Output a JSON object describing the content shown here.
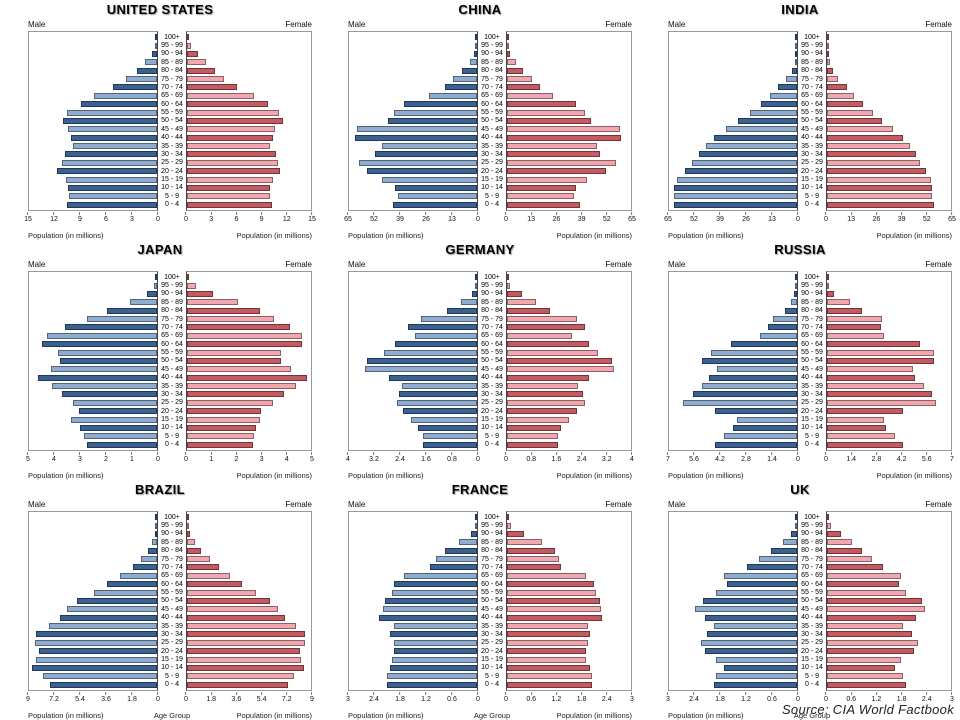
{
  "source_note": "Source: CIA World Factbook",
  "labels": {
    "male": "Male",
    "female": "Female",
    "population": "Population (in millions)",
    "age_group": "Age Group"
  },
  "colors": {
    "male_dark": "#3A6191",
    "male_light": "#8FADD1",
    "female_dark": "#C45B63",
    "female_light": "#F2A7AE",
    "box_border": "#999999",
    "axis_line": "#444444"
  },
  "age_groups": [
    "100+",
    "95 - 99",
    "90 - 94",
    "85 - 89",
    "80 - 84",
    "75 - 79",
    "70 - 74",
    "65 - 69",
    "60 - 64",
    "55 - 59",
    "50 - 54",
    "45 - 49",
    "40 - 44",
    "35 - 39",
    "30 - 34",
    "25 - 29",
    "20 - 24",
    "15 - 19",
    "10 - 14",
    "5 - 9",
    "0 - 4"
  ],
  "chart_data": {
    "type": "bar",
    "subtype": "population-pyramid-grid",
    "categories_note": "rows top-to-bottom use age_groups; values in millions",
    "charts": [
      {
        "title": "UNITED STATES",
        "xlim": [
          0,
          15
        ],
        "ticks_male": [
          "15",
          "12",
          "9",
          "6",
          "3",
          "0"
        ],
        "ticks_female": [
          "0",
          "3",
          "6",
          "9",
          "12",
          "15"
        ],
        "xlabel_left": "Population (in millions)",
        "xlabel_center": "",
        "xlabel_right": "Population (in millions)",
        "series": [
          {
            "name": "Male",
            "values": [
              0.06,
              0.2,
              0.55,
              1.35,
              2.4,
              3.6,
              5.2,
              7.4,
              8.9,
              10.5,
              11.0,
              10.4,
              10.1,
              9.9,
              10.8,
              11.1,
              11.7,
              10.7,
              10.4,
              10.3,
              10.6
            ]
          },
          {
            "name": "Female",
            "values": [
              0.12,
              0.45,
              1.3,
              2.3,
              3.4,
              4.5,
              6.1,
              8.1,
              9.8,
              11.1,
              11.6,
              10.7,
              10.4,
              10.0,
              10.8,
              11.0,
              11.3,
              10.4,
              10.0,
              10.0,
              10.3
            ]
          }
        ]
      },
      {
        "title": "CHINA",
        "xlim": [
          0,
          65
        ],
        "ticks_male": [
          "65",
          "52",
          "39",
          "26",
          "13",
          "0"
        ],
        "ticks_female": [
          "0",
          "13",
          "26",
          "39",
          "52",
          "65"
        ],
        "xlabel_left": "Population (in millions)",
        "xlabel_center": "",
        "xlabel_right": "Population (in millions)",
        "series": [
          {
            "name": "Male",
            "values": [
              0.05,
              0.3,
              1.5,
              3.8,
              7.5,
              12,
              16.5,
              24.5,
              37,
              42,
              45,
              61,
              62,
              48,
              52,
              60,
              56,
              48,
              41.5,
              40,
              42.5
            ]
          },
          {
            "name": "Female",
            "values": [
              0.08,
              0.5,
              1.8,
              4.5,
              8.5,
              13,
              17.5,
              24,
              36,
              41,
              44,
              59,
              60,
              47,
              49,
              57,
              52,
              42,
              36,
              35,
              38.5
            ]
          }
        ]
      },
      {
        "title": "INDIA",
        "xlim": [
          0,
          65
        ],
        "ticks_male": [
          "65",
          "52",
          "39",
          "26",
          "13",
          "0"
        ],
        "ticks_female": [
          "0",
          "13",
          "26",
          "39",
          "52",
          "65"
        ],
        "xlabel_left": "Population (in millions)",
        "xlabel_center": "",
        "xlabel_right": "Population (in millions)",
        "series": [
          {
            "name": "Male",
            "values": [
              0.03,
              0.1,
              0.4,
              1.2,
              2.8,
              5.5,
              9.5,
              13.5,
              18.5,
              24,
              30,
              36,
              42,
              46,
              50,
              53.5,
              57,
              61,
              62.5,
              62.5,
              62.5
            ]
          },
          {
            "name": "Female",
            "values": [
              0.05,
              0.15,
              0.6,
              1.5,
              3.2,
              6,
              10.5,
              14,
              19,
              24,
              29,
              34.5,
              40,
              43.5,
              46.5,
              49,
              52,
              54.5,
              55,
              55,
              56
            ]
          }
        ]
      },
      {
        "title": "JAPAN",
        "xlim": [
          0,
          5
        ],
        "ticks_male": [
          "5",
          "4",
          "3",
          "2",
          "1",
          "0"
        ],
        "ticks_female": [
          "0",
          "1",
          "2",
          "3",
          "4",
          "5"
        ],
        "xlabel_left": "Population (in millions)",
        "xlabel_center": "",
        "xlabel_right": "Population (in millions)",
        "series": [
          {
            "name": "Male",
            "values": [
              0.03,
              0.12,
              0.4,
              1.05,
              1.95,
              2.75,
              3.6,
              4.3,
              4.5,
              3.85,
              3.8,
              4.15,
              4.65,
              4.1,
              3.7,
              3.3,
              3.05,
              3.35,
              3.0,
              2.85,
              2.75
            ]
          },
          {
            "name": "Female",
            "values": [
              0.1,
              0.35,
              1.05,
              2.05,
              2.95,
              3.5,
              4.15,
              4.65,
              4.65,
              3.8,
              3.8,
              4.2,
              4.85,
              4.4,
              3.9,
              3.45,
              3.0,
              2.95,
              2.8,
              2.7,
              2.65
            ]
          }
        ]
      },
      {
        "title": "GERMANY",
        "xlim": [
          0,
          4
        ],
        "ticks_male": [
          "4",
          "3.2",
          "2.4",
          "1.6",
          "0.8",
          "0"
        ],
        "ticks_female": [
          "0",
          "0.8",
          "1.6",
          "2.4",
          "3.2",
          "4"
        ],
        "xlabel_left": "Population (in millions)",
        "xlabel_center": "",
        "xlabel_right": "Population (in millions)",
        "series": [
          {
            "name": "Male",
            "values": [
              0.01,
              0.05,
              0.17,
              0.5,
              0.95,
              1.75,
              2.15,
              1.95,
              2.55,
              2.9,
              3.45,
              3.5,
              2.75,
              2.35,
              2.45,
              2.5,
              2.3,
              2.05,
              1.85,
              1.7,
              1.7
            ]
          },
          {
            "name": "Female",
            "values": [
              0.04,
              0.1,
              0.48,
              0.95,
              1.4,
              2.25,
              2.5,
              2.1,
              2.65,
              2.95,
              3.4,
              3.45,
              2.65,
              2.3,
              2.45,
              2.5,
              2.25,
              2.0,
              1.75,
              1.65,
              1.65
            ]
          }
        ]
      },
      {
        "title": "RUSSIA",
        "xlim": [
          0,
          7
        ],
        "ticks_male": [
          "7",
          "5.6",
          "4.2",
          "2.8",
          "1.4",
          "0"
        ],
        "ticks_female": [
          "0",
          "1.4",
          "2.8",
          "4.2",
          "5.6",
          "7"
        ],
        "xlabel_left": "Population (in millions)",
        "xlabel_center": "",
        "xlabel_right": "Population (in millions)",
        "series": [
          {
            "name": "Male",
            "values": [
              0.01,
              0.05,
              0.15,
              0.35,
              0.65,
              1.3,
              1.6,
              2.0,
              3.6,
              4.7,
              5.2,
              4.4,
              4.8,
              5.2,
              5.7,
              6.25,
              4.5,
              3.3,
              3.5,
              4.0,
              4.5
            ]
          },
          {
            "name": "Female",
            "values": [
              0.03,
              0.1,
              0.4,
              1.3,
              2.0,
              3.1,
              3.05,
              3.2,
              5.25,
              6.05,
              6.05,
              4.85,
              4.95,
              5.45,
              5.9,
              6.15,
              4.3,
              3.2,
              3.35,
              3.85,
              4.3
            ]
          }
        ]
      },
      {
        "title": "BRAZIL",
        "xlim": [
          0,
          9
        ],
        "ticks_male": [
          "9",
          "7.2",
          "5.4",
          "3.6",
          "1.8",
          "0"
        ],
        "ticks_female": [
          "0",
          "1.8",
          "3.6",
          "5.4",
          "7.2",
          "9"
        ],
        "xlabel_left": "Population (in millions)",
        "xlabel_center": "Age Group",
        "xlabel_right": "Population (in millions)",
        "series": [
          {
            "name": "Male",
            "values": [
              0.01,
              0.05,
              0.15,
              0.35,
              0.6,
              1.1,
              1.7,
              2.6,
              3.5,
              4.4,
              5.6,
              6.3,
              6.8,
              7.6,
              8.5,
              8.6,
              8.3,
              8.5,
              8.8,
              8.0,
              7.5
            ]
          },
          {
            "name": "Female",
            "values": [
              0.02,
              0.08,
              0.25,
              0.55,
              1.0,
              1.7,
              2.3,
              3.1,
              4.0,
              5.0,
              6.0,
              6.6,
              7.1,
              7.9,
              8.6,
              8.6,
              8.2,
              8.3,
              8.5,
              7.8,
              7.3
            ]
          }
        ]
      },
      {
        "title": "FRANCE",
        "xlim": [
          0,
          3
        ],
        "ticks_male": [
          "3",
          "2.4",
          "1.8",
          "1.2",
          "0.6",
          "0"
        ],
        "ticks_female": [
          "0",
          "0.6",
          "1.2",
          "1.8",
          "2.4",
          "3"
        ],
        "xlabel_left": "Population (in millions)",
        "xlabel_center": "Age Group",
        "xlabel_right": "Population (in millions)",
        "series": [
          {
            "name": "Male",
            "values": [
              0.01,
              0.04,
              0.15,
              0.42,
              0.75,
              0.95,
              1.1,
              1.7,
              1.95,
              2.0,
              2.15,
              2.2,
              2.3,
              1.95,
              2.05,
              1.95,
              1.95,
              2.0,
              2.05,
              2.1,
              2.1
            ]
          },
          {
            "name": "Female",
            "values": [
              0.03,
              0.1,
              0.42,
              0.85,
              1.15,
              1.25,
              1.3,
              1.9,
              2.1,
              2.15,
              2.25,
              2.28,
              2.3,
              1.95,
              2.0,
              1.95,
              1.9,
              1.9,
              2.0,
              2.05,
              2.05
            ]
          }
        ]
      },
      {
        "title": "UK",
        "xlim": [
          0,
          3
        ],
        "ticks_male": [
          "3",
          "2.4",
          "1.8",
          "1.2",
          "0.6",
          "0"
        ],
        "ticks_female": [
          "0",
          "0.6",
          "1.2",
          "1.8",
          "2.4",
          "3"
        ],
        "xlabel_left": "Population (in millions)",
        "xlabel_center": "Age Group",
        "xlabel_right": "",
        "series": [
          {
            "name": "Male",
            "values": [
              0.01,
              0.03,
              0.13,
              0.33,
              0.62,
              0.9,
              1.18,
              1.7,
              1.65,
              1.9,
              2.2,
              2.4,
              2.15,
              1.95,
              2.1,
              2.25,
              2.15,
              1.9,
              1.7,
              1.9,
              1.95
            ]
          },
          {
            "name": "Female",
            "values": [
              0.02,
              0.1,
              0.33,
              0.6,
              0.85,
              1.1,
              1.35,
              1.8,
              1.75,
              1.9,
              2.3,
              2.38,
              2.15,
              1.85,
              2.05,
              2.2,
              2.1,
              1.8,
              1.65,
              1.85,
              1.9
            ]
          }
        ]
      }
    ]
  }
}
